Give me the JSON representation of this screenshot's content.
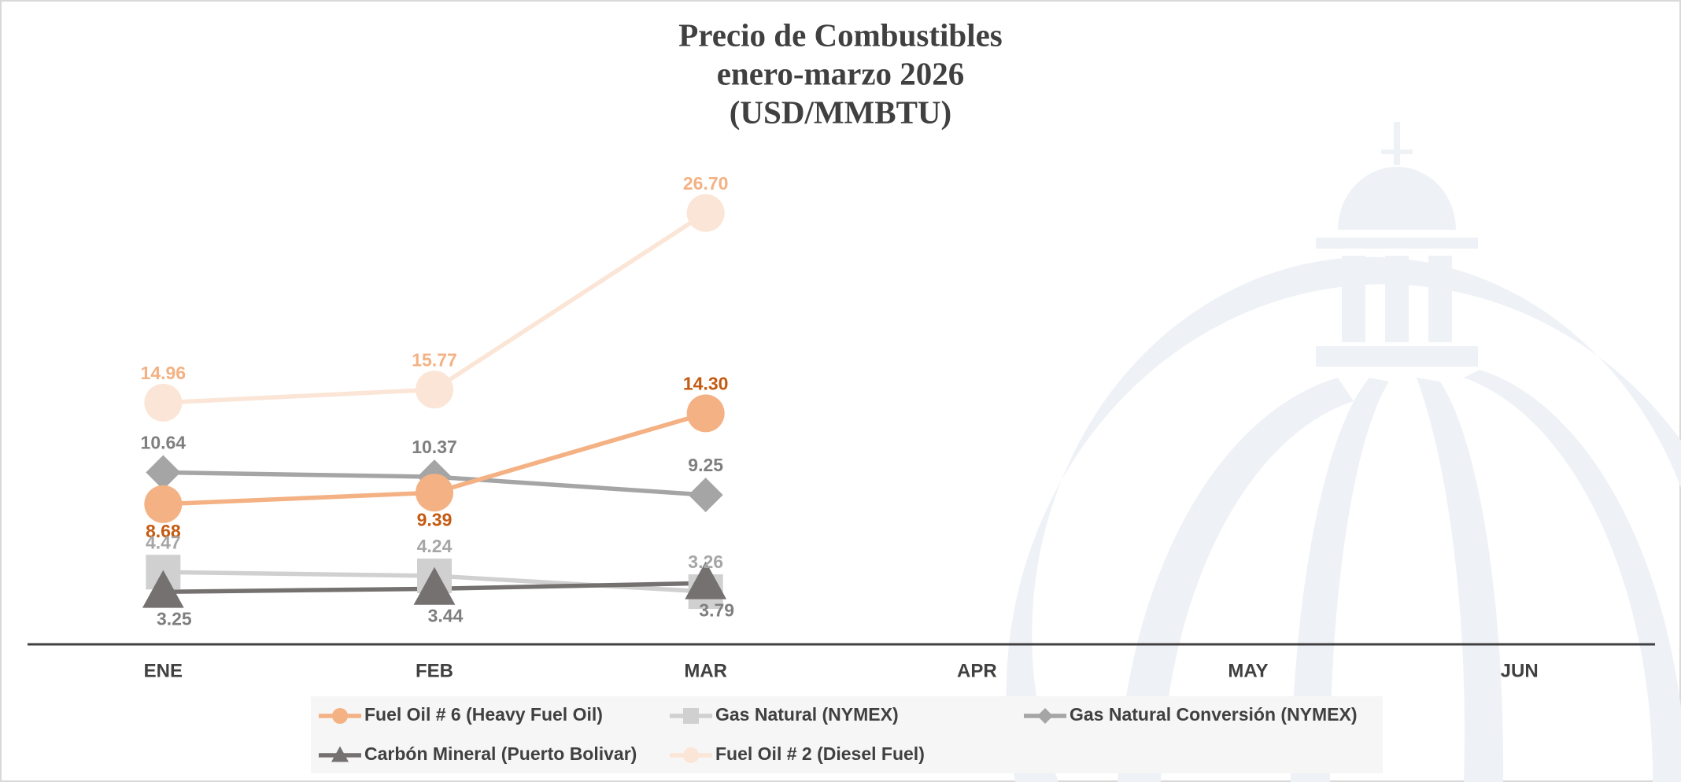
{
  "chart_data": {
    "type": "line",
    "title": "Precio de Combustibles",
    "subtitle": "enero-marzo 2026",
    "units": "(USD/MMBTU)",
    "categories": [
      "ENE",
      "FEB",
      "MAR",
      "APR",
      "MAY",
      "JUN"
    ],
    "ylim": [
      0,
      30
    ],
    "series": [
      {
        "name": "Fuel Oil # 6 (Heavy Fuel Oil)",
        "color": "#f4b183",
        "label_color": "#c55a11",
        "marker": "circle",
        "values": [
          8.68,
          9.39,
          14.3,
          null,
          null,
          null
        ],
        "value_labels": [
          "8.68",
          "9.39",
          "14.30",
          null,
          null,
          null
        ]
      },
      {
        "name": "Gas Natural (NYMEX)",
        "color": "#d0d0d0",
        "label_color": "#a6a6a6",
        "marker": "square",
        "values": [
          4.47,
          4.24,
          3.26,
          null,
          null,
          null
        ],
        "value_labels": [
          "4.47",
          "4.24",
          "3.26",
          null,
          null,
          null
        ]
      },
      {
        "name": "Gas Natural Conversión (NYMEX)",
        "color": "#a5a5a5",
        "label_color": "#7f7f7f",
        "marker": "diamond",
        "values": [
          10.64,
          10.37,
          9.25,
          null,
          null,
          null
        ],
        "value_labels": [
          "10.64",
          "10.37",
          "9.25",
          null,
          null,
          null
        ]
      },
      {
        "name": "Carbón Mineral (Puerto Bolivar)",
        "color": "#767171",
        "label_color": "#7f7f7f",
        "marker": "triangle",
        "values": [
          3.25,
          3.44,
          3.79,
          null,
          null,
          null
        ],
        "value_labels": [
          "3.25",
          "3.44",
          "3.79",
          null,
          null,
          null
        ]
      },
      {
        "name": "Fuel Oil # 2 (Diesel Fuel)",
        "color": "#fbe5d6",
        "label_color": "#f4b183",
        "marker": "circle",
        "values": [
          14.96,
          15.77,
          26.7,
          null,
          null,
          null
        ],
        "value_labels": [
          "14.96",
          "15.77",
          "26.70",
          null,
          null,
          null
        ]
      }
    ]
  }
}
